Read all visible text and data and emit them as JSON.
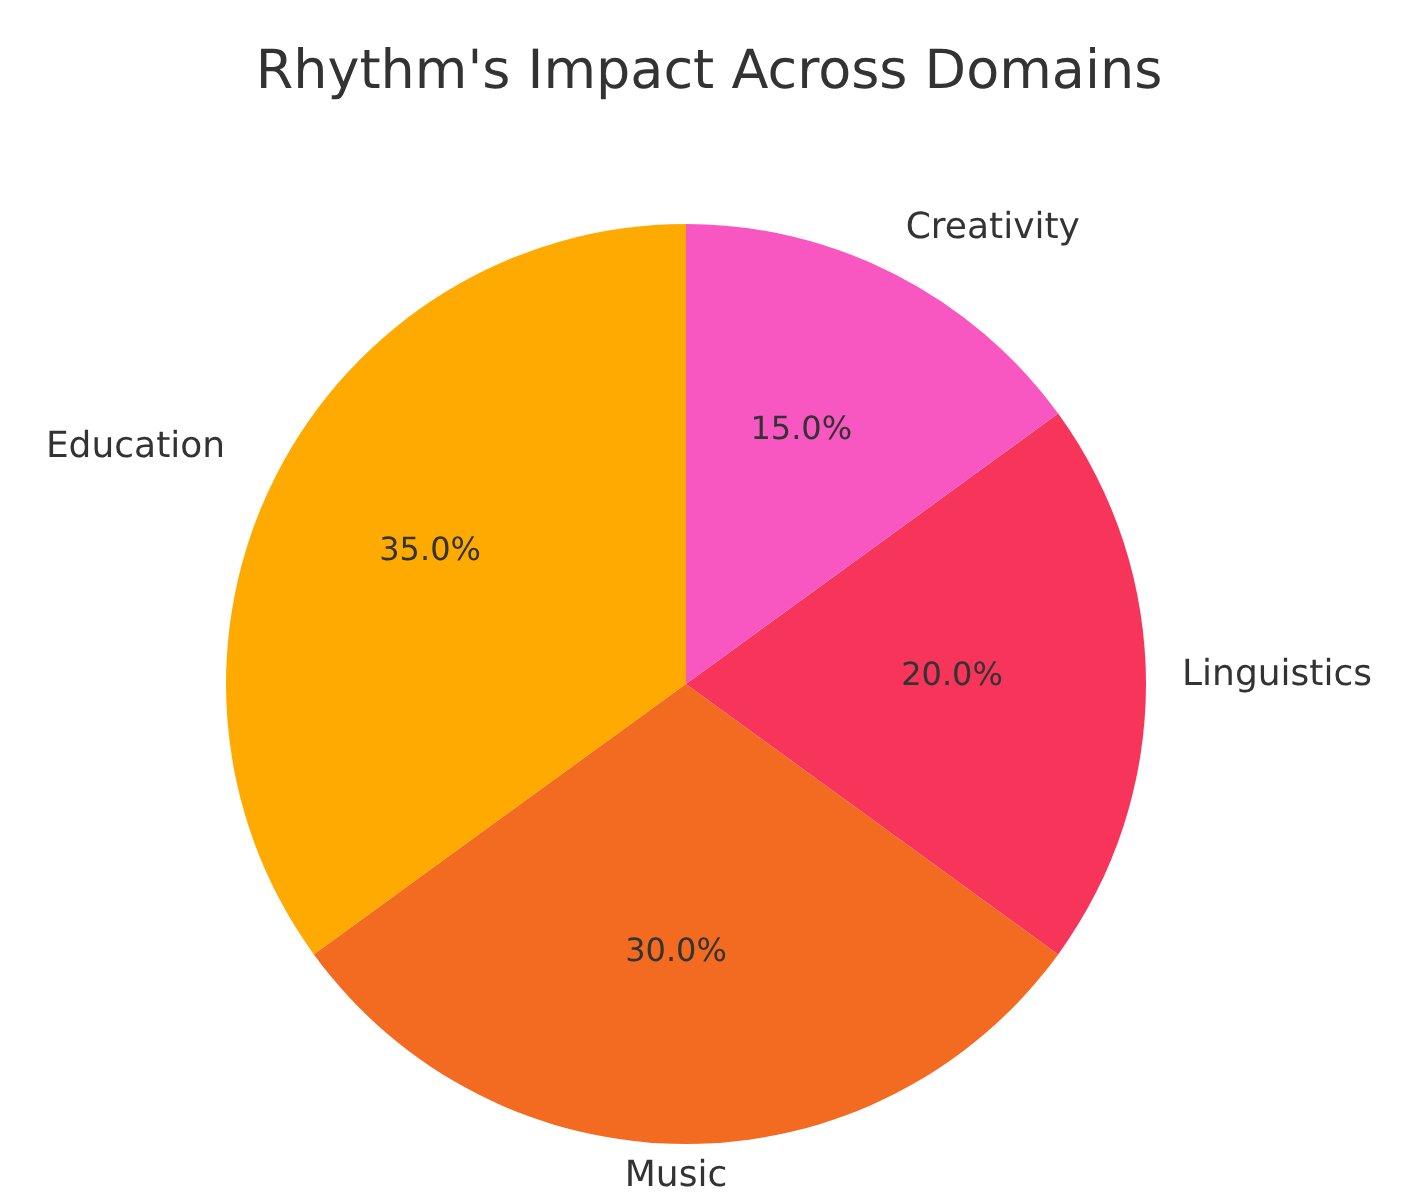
{
  "chart_data": {
    "type": "pie",
    "title": "Rhythm's Impact Across Domains",
    "categories": [
      "Education",
      "Music",
      "Linguistics",
      "Creativity"
    ],
    "values": [
      35,
      30,
      20,
      15
    ],
    "colors": [
      "#ffaa00",
      "#f26b21",
      "#f7345a",
      "#f857c1"
    ],
    "value_labels": [
      "35.0%",
      "30.0%",
      "20.0%",
      "15.0%"
    ]
  }
}
